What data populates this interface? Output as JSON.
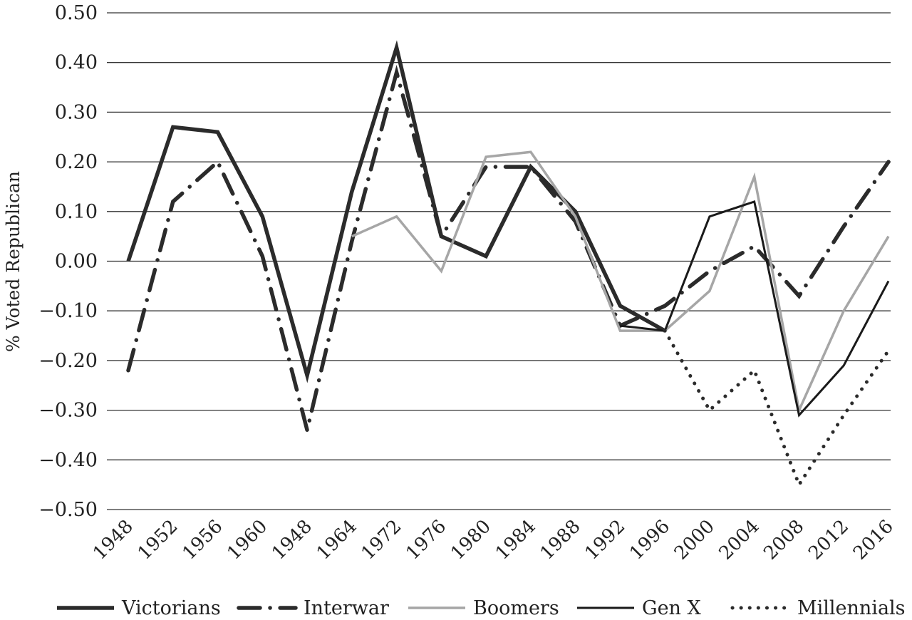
{
  "chart_data": {
    "type": "line",
    "title": "",
    "xlabel": "",
    "ylabel": "% Voted Republican",
    "categories": [
      "1948",
      "1952",
      "1956",
      "1960",
      "1948",
      "1964",
      "1972",
      "1976",
      "1980",
      "1984",
      "1988",
      "1992",
      "1996",
      "2000",
      "2004",
      "2008",
      "2012",
      "2016"
    ],
    "y_ticks": [
      "0.50",
      "0.40",
      "0.30",
      "0.20",
      "0.10",
      "0.00",
      "−0.10",
      "−0.20",
      "−0.30",
      "−0.40",
      "−0.50"
    ],
    "ylim": [
      -0.5,
      0.5
    ],
    "grid": true,
    "legend_position": "bottom",
    "series": [
      {
        "name": "Victorians",
        "style": "thick-solid",
        "color": "#2b2b2b",
        "values": [
          0.0,
          0.27,
          0.26,
          0.09,
          -0.23,
          0.14,
          0.43,
          0.05,
          0.01,
          0.19,
          0.1,
          -0.09,
          -0.14,
          null,
          null,
          null,
          null,
          null
        ]
      },
      {
        "name": "Interwar",
        "style": "dash-dot",
        "color": "#2b2b2b",
        "values": [
          -0.22,
          0.12,
          0.2,
          0.01,
          -0.34,
          0.04,
          0.38,
          0.05,
          0.19,
          0.19,
          0.08,
          -0.13,
          -0.09,
          -0.02,
          0.03,
          -0.07,
          0.07,
          0.2
        ]
      },
      {
        "name": "Boomers",
        "style": "solid-gray",
        "color": "#a6a6a6",
        "values": [
          null,
          null,
          null,
          null,
          null,
          0.05,
          0.09,
          -0.02,
          0.21,
          0.22,
          0.09,
          -0.14,
          -0.14,
          -0.06,
          0.17,
          -0.3,
          -0.1,
          0.05
        ]
      },
      {
        "name": "Gen X",
        "style": "thin-solid",
        "color": "#1a1a1a",
        "values": [
          null,
          null,
          null,
          null,
          null,
          null,
          null,
          null,
          null,
          null,
          null,
          -0.13,
          -0.14,
          0.09,
          0.12,
          -0.31,
          -0.21,
          -0.04
        ]
      },
      {
        "name": "Millennials",
        "style": "dotted",
        "color": "#2b2b2b",
        "values": [
          null,
          null,
          null,
          null,
          null,
          null,
          null,
          null,
          null,
          null,
          null,
          null,
          -0.14,
          -0.3,
          -0.22,
          -0.45,
          -0.31,
          -0.18
        ]
      }
    ]
  }
}
